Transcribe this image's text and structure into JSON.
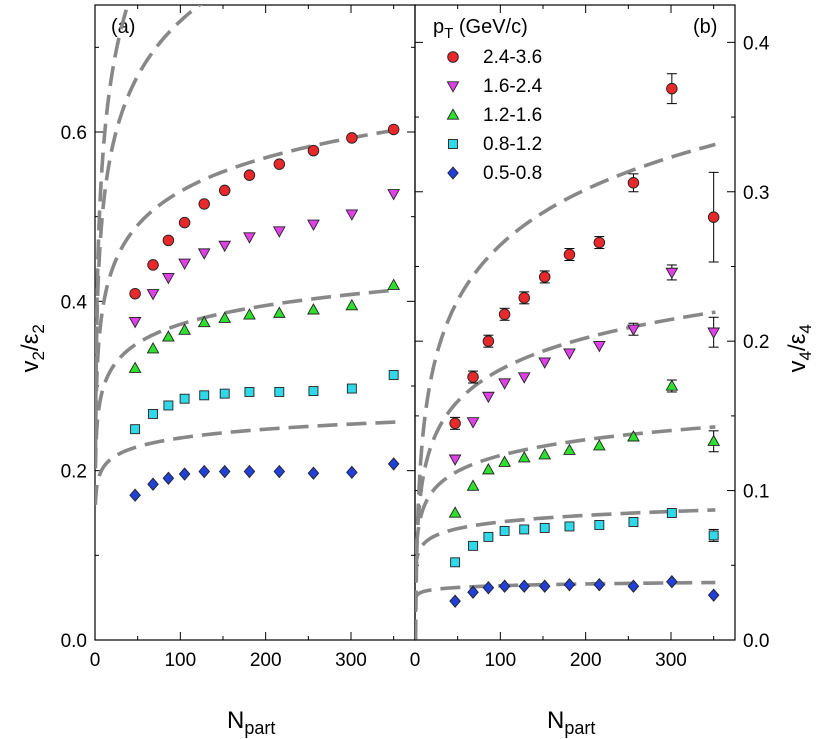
{
  "chart_data": [
    {
      "panel_label": "(a)",
      "type": "scatter",
      "xlabel": "N",
      "xlabel_sub": "part",
      "ylabel": "v",
      "ylabel_sub": "2",
      "ylabel_sep": "/ε",
      "ylabel_sub2": "2",
      "xlim": [
        0,
        375
      ],
      "ylim": [
        0,
        0.75
      ],
      "x_ticks": [
        0,
        100,
        200,
        300
      ],
      "x_tick_labels": [
        "0",
        "100",
        "200",
        "300"
      ],
      "y_ticks": [
        0.0,
        0.2,
        0.4,
        0.6
      ],
      "y_tick_labels": [
        "0.0",
        "0.2",
        "0.4",
        "0.6"
      ],
      "y_axis_side": "left",
      "fit": {
        "style": "dashed",
        "color": "#888888"
      },
      "series": [
        {
          "marker": "circle",
          "color": "#e8282a",
          "x": [
            47,
            68,
            86,
            105,
            128,
            152,
            181,
            216,
            256,
            301,
            350
          ],
          "y": [
            0.409,
            0.443,
            0.472,
            0.493,
            0.515,
            0.531,
            0.549,
            0.562,
            0.578,
            0.593,
            0.603
          ],
          "fit": {
            "a": 0.296,
            "b": 0.1245
          }
        },
        {
          "marker": "triangle-down",
          "color": "#e040e8",
          "x": [
            47,
            68,
            86,
            105,
            128,
            152,
            181,
            216,
            256,
            301,
            350
          ],
          "y": [
            0.376,
            0.409,
            0.428,
            0.445,
            0.457,
            0.466,
            0.476,
            0.483,
            0.491,
            0.503,
            0.527
          ],
          "fit": {
            "a": 0.3,
            "b": 0.0936
          }
        },
        {
          "marker": "triangle-up",
          "color": "#2ee02e",
          "x": [
            47,
            68,
            86,
            105,
            128,
            152,
            181,
            216,
            256,
            301,
            350
          ],
          "y": [
            0.321,
            0.344,
            0.358,
            0.366,
            0.375,
            0.38,
            0.384,
            0.386,
            0.39,
            0.395,
            0.419
          ],
          "fit": {
            "a": 0.265,
            "b": 0.0575
          }
        },
        {
          "marker": "square",
          "color": "#30d8e8",
          "x": [
            47,
            68,
            86,
            105,
            128,
            152,
            181,
            216,
            256,
            301,
            350
          ],
          "y": [
            0.249,
            0.267,
            0.277,
            0.285,
            0.289,
            0.291,
            0.293,
            0.293,
            0.294,
            0.297,
            0.313
          ],
          "fit": {
            "a": 0.225,
            "b": 0.0321
          }
        },
        {
          "marker": "diamond",
          "color": "#2040d8",
          "x": [
            47,
            68,
            86,
            105,
            128,
            152,
            181,
            216,
            256,
            301,
            350
          ],
          "y": [
            0.171,
            0.184,
            0.191,
            0.196,
            0.199,
            0.199,
            0.199,
            0.199,
            0.197,
            0.198,
            0.208
          ],
          "fit": {
            "a": 0.17,
            "b": 0.0149
          }
        }
      ]
    },
    {
      "panel_label": "(b)",
      "type": "scatter",
      "xlabel": "N",
      "xlabel_sub": "part",
      "ylabel": "v",
      "ylabel_sub": "4",
      "ylabel_sep": "/ε",
      "ylabel_sub2": "4",
      "xlim": [
        0,
        375
      ],
      "ylim": [
        0,
        0.425
      ],
      "x_ticks": [
        0,
        100,
        200,
        300
      ],
      "x_tick_labels": [
        "0",
        "100",
        "200",
        "300"
      ],
      "y_ticks": [
        0.0,
        0.1,
        0.2,
        0.3,
        0.4
      ],
      "y_tick_labels": [
        "0.0",
        "0.1",
        "0.2",
        "0.3",
        "0.4"
      ],
      "y_axis_side": "right",
      "legend": {
        "title": "p",
        "title_sub": "T",
        "title_unit": " (GeV/c)",
        "position": "top-left",
        "entries": [
          "2.4-3.6",
          "1.6-2.4",
          "1.2-1.6",
          "0.8-1.2",
          "0.5-0.8"
        ]
      },
      "fit": {
        "style": "dashed",
        "color": "#888888"
      },
      "series": [
        {
          "marker": "circle",
          "color": "#e8282a",
          "x": [
            47,
            68,
            86,
            105,
            128,
            152,
            181,
            216,
            256,
            301,
            350
          ],
          "y": [
            0.145,
            0.176,
            0.2,
            0.218,
            0.229,
            0.243,
            0.258,
            0.266,
            0.306,
            0.369,
            0.283
          ],
          "err": [
            0.004,
            0.004,
            0.004,
            0.004,
            0.004,
            0.004,
            0.004,
            0.004,
            0.006,
            0.01,
            0.03
          ],
          "fit": {
            "a": 0.018,
            "b": 0.0535
          }
        },
        {
          "marker": "triangle-down",
          "color": "#e040e8",
          "x": [
            47,
            68,
            86,
            105,
            128,
            152,
            181,
            216,
            256,
            301,
            350
          ],
          "y": [
            0.121,
            0.146,
            0.163,
            0.172,
            0.176,
            0.186,
            0.192,
            0.197,
            0.208,
            0.246,
            0.206
          ],
          "err": [
            0.003,
            0.003,
            0.003,
            0.003,
            0.003,
            0.003,
            0.003,
            0.003,
            0.004,
            0.005,
            0.01
          ],
          "fit": {
            "a": 0.04,
            "b": 0.0306
          }
        },
        {
          "marker": "triangle-up",
          "color": "#2ee02e",
          "x": [
            47,
            68,
            86,
            105,
            128,
            152,
            181,
            216,
            256,
            301,
            350
          ],
          "y": [
            0.085,
            0.103,
            0.114,
            0.119,
            0.122,
            0.124,
            0.127,
            0.13,
            0.136,
            0.17,
            0.133
          ],
          "err": [
            0.002,
            0.002,
            0.002,
            0.002,
            0.002,
            0.002,
            0.002,
            0.002,
            0.003,
            0.004,
            0.007
          ],
          "fit": {
            "a": 0.0535,
            "b": 0.0152
          }
        },
        {
          "marker": "square",
          "color": "#30d8e8",
          "x": [
            47,
            68,
            86,
            105,
            128,
            152,
            181,
            216,
            256,
            301,
            350
          ],
          "y": [
            0.052,
            0.063,
            0.069,
            0.073,
            0.074,
            0.075,
            0.076,
            0.077,
            0.079,
            0.085,
            0.07
          ],
          "err": [
            0.002,
            0.002,
            0.002,
            0.002,
            0.002,
            0.002,
            0.002,
            0.002,
            0.002,
            0.002,
            0.004
          ],
          "fit": {
            "a": 0.0495,
            "b": 0.0064
          }
        },
        {
          "marker": "diamond",
          "color": "#2040d8",
          "x": [
            47,
            68,
            86,
            105,
            128,
            152,
            181,
            216,
            256,
            301,
            350
          ],
          "y": [
            0.026,
            0.032,
            0.035,
            0.036,
            0.036,
            0.036,
            0.037,
            0.037,
            0.036,
            0.039,
            0.03
          ],
          "err": [
            0.001,
            0.001,
            0.001,
            0.001,
            0.001,
            0.001,
            0.001,
            0.001,
            0.001,
            0.001,
            0.003
          ],
          "fit": {
            "a": 0.0285,
            "b": 0.0017
          }
        }
      ]
    }
  ]
}
